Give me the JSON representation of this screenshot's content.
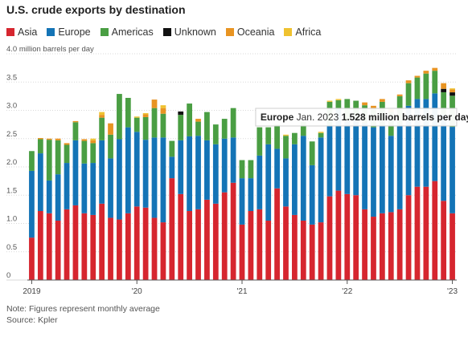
{
  "chart_data": {
    "type": "bar",
    "stacked": true,
    "title": "U.S. crude exports by destination",
    "ylabel": "million barrels per day",
    "ylim": [
      0,
      4.0
    ],
    "yticks": [
      0,
      0.5,
      1.0,
      1.5,
      2.0,
      2.5,
      3.0,
      3.5,
      4.0
    ],
    "ytick_labels": [
      "0",
      "0.5",
      "1.0",
      "1.5",
      "2.0",
      "2.5",
      "3.0",
      "3.5",
      "4.0 million barrels per day"
    ],
    "grid": "horizontal",
    "legend_position": "top-left",
    "x_tick_labels": [
      {
        "index": 0,
        "label": "2019"
      },
      {
        "index": 12,
        "label": "'20"
      },
      {
        "index": 24,
        "label": "'21"
      },
      {
        "index": 36,
        "label": "'22"
      },
      {
        "index": 48,
        "label": "'23"
      }
    ],
    "categories": [
      "Jan 2019",
      "Feb 2019",
      "Mar 2019",
      "Apr 2019",
      "May 2019",
      "Jun 2019",
      "Jul 2019",
      "Aug 2019",
      "Sep 2019",
      "Oct 2019",
      "Nov 2019",
      "Dec 2019",
      "Jan 2020",
      "Feb 2020",
      "Mar 2020",
      "Apr 2020",
      "May 2020",
      "Jun 2020",
      "Jul 2020",
      "Aug 2020",
      "Sep 2020",
      "Oct 2020",
      "Nov 2020",
      "Dec 2020",
      "Jan 2021",
      "Feb 2021",
      "Mar 2021",
      "Apr 2021",
      "May 2021",
      "Jun 2021",
      "Jul 2021",
      "Aug 2021",
      "Sep 2021",
      "Oct 2021",
      "Nov 2021",
      "Dec 2021",
      "Jan 2022",
      "Feb 2022",
      "Mar 2022",
      "Apr 2022",
      "May 2022",
      "Jun 2022",
      "Jul 2022",
      "Aug 2022",
      "Sep 2022",
      "Oct 2022",
      "Nov 2022",
      "Dec 2022",
      "Jan 2023"
    ],
    "series": [
      {
        "name": "Asia",
        "color": "#d6262f",
        "values": [
          0.75,
          1.22,
          1.18,
          1.05,
          1.25,
          1.32,
          1.18,
          1.15,
          1.35,
          1.1,
          1.07,
          1.18,
          1.3,
          1.28,
          1.1,
          1.02,
          1.8,
          1.52,
          1.22,
          1.25,
          1.42,
          1.35,
          1.55,
          1.72,
          0.98,
          1.22,
          1.25,
          1.05,
          1.62,
          1.3,
          1.15,
          1.05,
          0.98,
          1.02,
          1.48,
          1.58,
          1.52,
          1.5,
          1.25,
          1.12,
          1.18,
          1.2,
          1.25,
          1.5,
          1.65,
          1.65,
          1.75,
          1.4,
          1.18
        ]
      },
      {
        "name": "Europe",
        "color": "#1474b6",
        "values": [
          1.18,
          1.02,
          0.58,
          0.82,
          0.82,
          1.15,
          0.88,
          0.92,
          1.12,
          1.05,
          1.42,
          1.52,
          1.32,
          1.2,
          1.42,
          1.5,
          0.38,
          0.95,
          1.32,
          1.3,
          1.05,
          1.05,
          0.95,
          0.8,
          0.82,
          0.58,
          0.95,
          1.35,
          0.7,
          0.85,
          1.25,
          1.5,
          1.05,
          1.5,
          1.25,
          1.45,
          1.3,
          1.35,
          1.52,
          1.58,
          1.55,
          1.35,
          1.5,
          1.58,
          1.55,
          1.55,
          1.55,
          1.52,
          1.528
        ]
      },
      {
        "name": "Americas",
        "color": "#4a9e43",
        "values": [
          0.35,
          0.25,
          0.72,
          0.6,
          0.32,
          0.32,
          0.4,
          0.35,
          0.4,
          0.42,
          0.8,
          0.52,
          0.25,
          0.4,
          0.52,
          0.42,
          0.28,
          0.45,
          0.58,
          0.25,
          0.5,
          0.35,
          0.35,
          0.52,
          0.32,
          0.32,
          0.5,
          0.3,
          0.43,
          0.4,
          0.2,
          0.25,
          0.42,
          0.08,
          0.42,
          0.15,
          0.38,
          0.32,
          0.32,
          0.32,
          0.42,
          0.42,
          0.5,
          0.4,
          0.38,
          0.45,
          0.4,
          0.4,
          0.55
        ]
      },
      {
        "name": "Unknown",
        "color": "#111111",
        "values": [
          0,
          0,
          0,
          0,
          0,
          0,
          0,
          0,
          0,
          0,
          0,
          0,
          0,
          0,
          0,
          0,
          0,
          0.06,
          0,
          0,
          0,
          0,
          0,
          0,
          0,
          0,
          0,
          0,
          0,
          0,
          0,
          0,
          0,
          0,
          0,
          0,
          0,
          0,
          0,
          0,
          0,
          0,
          0,
          0,
          0,
          0,
          0,
          0.06,
          0.06
        ]
      },
      {
        "name": "Oceania",
        "color": "#e89422",
        "values": [
          0,
          0.02,
          0.02,
          0.03,
          0.03,
          0.02,
          0.03,
          0.05,
          0.05,
          0.2,
          0,
          0,
          0,
          0.05,
          0.15,
          0.1,
          0,
          0,
          0,
          0.05,
          0,
          0,
          0,
          0,
          0,
          0,
          0,
          0,
          0,
          0,
          0,
          0,
          0,
          0,
          0,
          0,
          0,
          0,
          0.05,
          0.06,
          0.05,
          0.05,
          0.03,
          0.05,
          0.03,
          0.05,
          0.05,
          0.1,
          0.05
        ]
      },
      {
        "name": "Africa",
        "color": "#efc230",
        "values": [
          0,
          0,
          0,
          0,
          0,
          0,
          0,
          0.03,
          0.05,
          0,
          0,
          0,
          0.02,
          0.02,
          0,
          0.05,
          0,
          0,
          0,
          0,
          0,
          0,
          0,
          0,
          0,
          0,
          0,
          0,
          0,
          0.02,
          0,
          0,
          0,
          0.02,
          0.02,
          0.02,
          0,
          0,
          0,
          0,
          0,
          0,
          0,
          0,
          0,
          0,
          0,
          0,
          0.02
        ]
      }
    ],
    "annotation": {
      "category_index": 48,
      "series": "Europe",
      "series_label": "Europe",
      "date_label": "Jan. 2023",
      "value_label": "1.528 million barrels per day"
    }
  },
  "notes": {
    "note": "Note: Figures represent monthly average",
    "source": "Source: Kpler"
  }
}
